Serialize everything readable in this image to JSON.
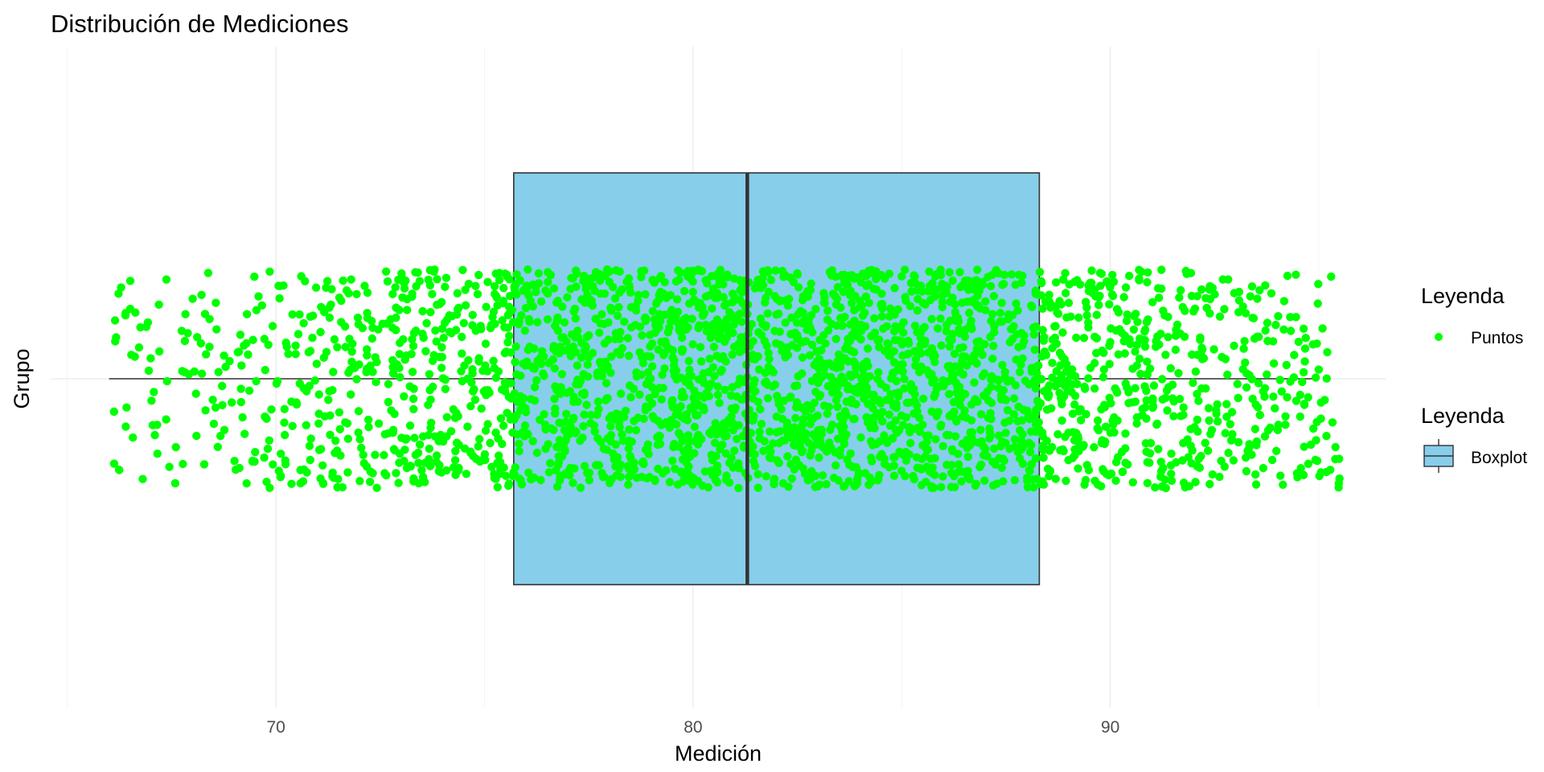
{
  "chart_data": {
    "type": "boxplot",
    "title": "Distribución de Mediciones",
    "xlabel": "Medición",
    "ylabel": "Grupo",
    "xlim": [
      64.6,
      96.6
    ],
    "x_ticks": [
      70,
      80,
      90
    ],
    "x_minor_ticks": [
      65,
      75,
      85,
      95
    ],
    "grid": true,
    "boxplot": {
      "name": "Boxplot",
      "min": 66.0,
      "q1": 75.7,
      "median": 81.3,
      "q3": 88.3,
      "max": 95.0,
      "fill": "#87CEEB",
      "stroke": "#333333"
    },
    "points": {
      "name": "Puntos",
      "color": "#00FF00",
      "count": 3000,
      "x_range": [
        66.0,
        95.5
      ],
      "jitter": "vertical"
    },
    "legends": [
      {
        "title": "Leyenda",
        "label": "Puntos",
        "symbol": "point",
        "color": "#00FF00"
      },
      {
        "title": "Leyenda",
        "label": "Boxplot",
        "symbol": "box",
        "color": "#87CEEB"
      }
    ],
    "legend_position": "right"
  }
}
